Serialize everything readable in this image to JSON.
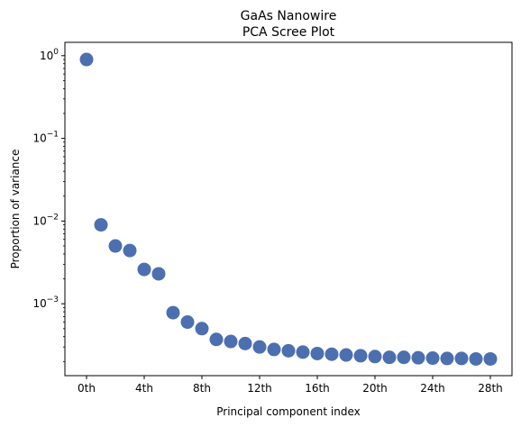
{
  "chart_data": {
    "type": "scatter",
    "title": "GaAs Nanowire",
    "subtitle": "PCA Scree Plot",
    "xlabel": "Principal component index",
    "ylabel": "Proportion of variance",
    "yscale": "log",
    "xlim": [
      -1.5,
      29.5
    ],
    "ylim": [
      0.000135,
      1.45
    ],
    "x_ticks": [
      {
        "value": 0,
        "label": "0th"
      },
      {
        "value": 4,
        "label": "4th"
      },
      {
        "value": 8,
        "label": "8th"
      },
      {
        "value": 12,
        "label": "12th"
      },
      {
        "value": 16,
        "label": "16th"
      },
      {
        "value": 20,
        "label": "20th"
      },
      {
        "value": 24,
        "label": "24th"
      },
      {
        "value": 28,
        "label": "28th"
      }
    ],
    "y_ticks": [
      {
        "value": 0.001,
        "base": "10",
        "exp": "−3"
      },
      {
        "value": 0.01,
        "base": "10",
        "exp": "−2"
      },
      {
        "value": 0.1,
        "base": "10",
        "exp": "−1"
      },
      {
        "value": 1,
        "base": "10",
        "exp": "0"
      }
    ],
    "grid": false,
    "marker_color": "#4c6fb0",
    "x": [
      0,
      1,
      2,
      3,
      4,
      5,
      6,
      7,
      8,
      9,
      10,
      11,
      12,
      13,
      14,
      15,
      16,
      17,
      18,
      19,
      20,
      21,
      22,
      23,
      24,
      25,
      26,
      27,
      28
    ],
    "values": [
      0.9,
      0.009,
      0.005,
      0.0044,
      0.0026,
      0.0023,
      0.00078,
      0.0006,
      0.0005,
      0.00037,
      0.00035,
      0.00033,
      0.0003,
      0.00028,
      0.00027,
      0.00026,
      0.00025,
      0.000245,
      0.00024,
      0.000235,
      0.00023,
      0.000225,
      0.000225,
      0.000222,
      0.00022,
      0.000218,
      0.000218,
      0.000215,
      0.000215
    ]
  }
}
